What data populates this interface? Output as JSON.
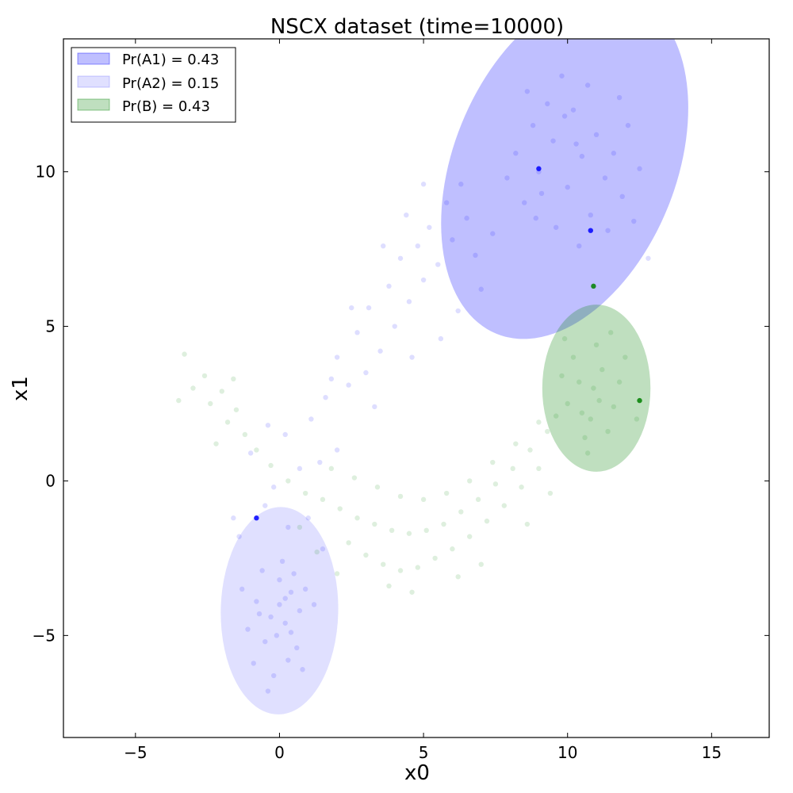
{
  "chart_data": {
    "type": "scatter",
    "title": "NSCX dataset (time=10000)",
    "xlabel": "x0",
    "ylabel": "x1",
    "xlim": [
      -7.5,
      17
    ],
    "ylim": [
      -8.3,
      14.3
    ],
    "xticks": [
      {
        "value": -5,
        "label": "−5"
      },
      {
        "value": 0,
        "label": "0"
      },
      {
        "value": 5,
        "label": "5"
      },
      {
        "value": 10,
        "label": "10"
      },
      {
        "value": 15,
        "label": "15"
      }
    ],
    "yticks": [
      {
        "value": -5,
        "label": "−5"
      },
      {
        "value": 0,
        "label": "0"
      },
      {
        "value": 5,
        "label": "5"
      },
      {
        "value": 10,
        "label": "10"
      }
    ],
    "grid": false,
    "legend_position": "top-left",
    "legend": [
      {
        "label": "Pr(A1) = 0.43",
        "color": "#0000ff",
        "opacity": 0.25
      },
      {
        "label": "Pr(A2) = 0.15",
        "color": "#0000ff",
        "opacity": 0.12
      },
      {
        "label": "Pr(B) = 0.43",
        "color": "#008000",
        "opacity": 0.25
      }
    ],
    "ellipses": [
      {
        "name": "A1",
        "center": [
          9.9,
          10.2
        ],
        "semi_axes": [
          6.3,
          3.6
        ],
        "angle_deg": 68,
        "color": "#0000ff",
        "opacity": 0.25
      },
      {
        "name": "A2",
        "center": [
          0.0,
          -4.2
        ],
        "semi_axes": [
          3.6,
          1.9
        ],
        "angle_deg": 89,
        "color": "#0000ff",
        "opacity": 0.12
      },
      {
        "name": "B",
        "center": [
          11.0,
          3.0
        ],
        "semi_axes": [
          2.9,
          1.75
        ],
        "angle_deg": 90,
        "color": "#008000",
        "opacity": 0.25
      }
    ],
    "series": [
      {
        "color": "#0000ff",
        "opacity": 0.13,
        "points": [
          [
            -0.3,
            -4.4
          ],
          [
            0.2,
            -3.8
          ],
          [
            -0.5,
            -5.2
          ],
          [
            0.4,
            -4.9
          ],
          [
            0.0,
            -3.2
          ],
          [
            -0.8,
            -3.9
          ],
          [
            0.7,
            -4.2
          ],
          [
            0.3,
            -5.8
          ],
          [
            -0.2,
            -6.3
          ],
          [
            0.9,
            -3.5
          ],
          [
            -1.1,
            -4.8
          ],
          [
            0.1,
            -2.6
          ],
          [
            0.6,
            -5.4
          ],
          [
            -0.6,
            -2.9
          ],
          [
            1.2,
            -4.0
          ],
          [
            -0.9,
            -5.9
          ],
          [
            0.5,
            -3.0
          ],
          [
            -0.4,
            -6.8
          ],
          [
            0.8,
            -6.1
          ],
          [
            -1.3,
            -3.5
          ],
          [
            0.0,
            -4.0
          ],
          [
            0.2,
            -4.6
          ],
          [
            -0.1,
            -5.0
          ],
          [
            0.4,
            -3.6
          ],
          [
            -0.7,
            -4.3
          ],
          [
            1.5,
            -2.2
          ],
          [
            -1.4,
            -1.8
          ],
          [
            0.3,
            -1.5
          ],
          [
            -0.5,
            -0.8
          ],
          [
            1.0,
            -1.2
          ],
          [
            -0.2,
            -0.2
          ],
          [
            0.7,
            0.4
          ],
          [
            -1.0,
            0.9
          ],
          [
            1.4,
            0.6
          ],
          [
            -1.6,
            -1.2
          ],
          [
            0.2,
            1.5
          ],
          [
            1.1,
            2.0
          ],
          [
            -0.4,
            1.8
          ],
          [
            2.0,
            1.0
          ],
          [
            1.6,
            2.7
          ],
          [
            2.4,
            3.1
          ],
          [
            2.0,
            4.0
          ],
          [
            3.0,
            3.5
          ],
          [
            2.7,
            4.8
          ],
          [
            3.5,
            4.2
          ],
          [
            3.1,
            5.6
          ],
          [
            4.0,
            5.0
          ],
          [
            3.8,
            6.3
          ],
          [
            4.5,
            5.8
          ],
          [
            4.2,
            7.2
          ],
          [
            5.0,
            6.5
          ],
          [
            4.8,
            7.6
          ],
          [
            5.5,
            7.0
          ],
          [
            5.2,
            8.2
          ],
          [
            6.0,
            7.8
          ],
          [
            5.8,
            9.0
          ],
          [
            6.5,
            8.5
          ],
          [
            6.3,
            9.6
          ],
          [
            3.3,
            2.4
          ],
          [
            4.6,
            4.0
          ],
          [
            5.6,
            4.6
          ],
          [
            6.2,
            5.5
          ],
          [
            7.0,
            6.2
          ],
          [
            6.8,
            7.3
          ],
          [
            7.4,
            8.0
          ],
          [
            2.5,
            5.6
          ],
          [
            1.8,
            3.3
          ],
          [
            3.6,
            7.6
          ],
          [
            4.4,
            8.6
          ],
          [
            5.0,
            9.6
          ],
          [
            8.5,
            9.0
          ],
          [
            9.0,
            10.0
          ],
          [
            9.5,
            11.0
          ],
          [
            10.0,
            9.5
          ],
          [
            10.5,
            10.5
          ],
          [
            8.8,
            11.5
          ],
          [
            9.3,
            12.2
          ],
          [
            10.2,
            12.0
          ],
          [
            11.0,
            11.2
          ],
          [
            11.3,
            9.8
          ],
          [
            10.8,
            8.6
          ],
          [
            9.6,
            8.2
          ],
          [
            11.6,
            10.6
          ],
          [
            8.2,
            10.6
          ],
          [
            9.9,
            11.8
          ],
          [
            10.7,
            12.8
          ],
          [
            11.9,
            9.2
          ],
          [
            12.3,
            8.4
          ],
          [
            12.8,
            7.2
          ],
          [
            9.1,
            9.3
          ],
          [
            10.4,
            7.6
          ],
          [
            11.4,
            8.1
          ],
          [
            8.6,
            12.6
          ],
          [
            9.8,
            13.1
          ],
          [
            12.1,
            11.5
          ],
          [
            7.9,
            9.8
          ],
          [
            8.9,
            8.5
          ],
          [
            12.5,
            10.1
          ],
          [
            11.8,
            12.4
          ],
          [
            10.3,
            10.9
          ]
        ]
      },
      {
        "color": "#008000",
        "opacity": 0.13,
        "points": [
          [
            -3.0,
            3.0
          ],
          [
            -2.4,
            2.5
          ],
          [
            -1.8,
            1.9
          ],
          [
            -1.2,
            1.5
          ],
          [
            -2.6,
            3.4
          ],
          [
            -3.5,
            2.6
          ],
          [
            -2.0,
            2.9
          ],
          [
            -1.5,
            2.3
          ],
          [
            -0.8,
            1.0
          ],
          [
            -0.3,
            0.5
          ],
          [
            0.3,
            0.0
          ],
          [
            0.9,
            -0.4
          ],
          [
            1.5,
            -0.6
          ],
          [
            2.1,
            -0.9
          ],
          [
            2.7,
            -1.2
          ],
          [
            3.3,
            -1.4
          ],
          [
            3.9,
            -1.6
          ],
          [
            4.5,
            -1.7
          ],
          [
            5.1,
            -1.6
          ],
          [
            5.7,
            -1.4
          ],
          [
            6.3,
            -1.0
          ],
          [
            6.9,
            -0.6
          ],
          [
            7.5,
            -0.1
          ],
          [
            8.1,
            0.4
          ],
          [
            8.7,
            1.0
          ],
          [
            9.3,
            1.6
          ],
          [
            2.4,
            -2.0
          ],
          [
            3.0,
            -2.4
          ],
          [
            3.6,
            -2.7
          ],
          [
            4.2,
            -2.9
          ],
          [
            4.8,
            -2.8
          ],
          [
            5.4,
            -2.5
          ],
          [
            6.0,
            -2.2
          ],
          [
            6.6,
            -1.8
          ],
          [
            7.2,
            -1.3
          ],
          [
            7.8,
            -0.8
          ],
          [
            8.4,
            -0.2
          ],
          [
            9.0,
            0.4
          ],
          [
            1.8,
            0.4
          ],
          [
            2.6,
            0.1
          ],
          [
            3.4,
            -0.2
          ],
          [
            4.2,
            -0.5
          ],
          [
            5.0,
            -0.6
          ],
          [
            5.8,
            -0.4
          ],
          [
            6.6,
            0.0
          ],
          [
            7.4,
            0.6
          ],
          [
            8.2,
            1.2
          ],
          [
            9.0,
            1.9
          ],
          [
            3.8,
            -3.4
          ],
          [
            4.6,
            -3.6
          ],
          [
            10.0,
            2.5
          ],
          [
            10.4,
            3.2
          ],
          [
            10.8,
            2.0
          ],
          [
            11.2,
            3.6
          ],
          [
            10.6,
            1.4
          ],
          [
            11.6,
            2.4
          ],
          [
            10.2,
            4.0
          ],
          [
            11.0,
            4.4
          ],
          [
            9.8,
            3.4
          ],
          [
            11.4,
            1.6
          ],
          [
            10.9,
            3.0
          ],
          [
            11.8,
            3.2
          ],
          [
            10.5,
            2.2
          ],
          [
            11.1,
            2.6
          ],
          [
            9.6,
            2.1
          ],
          [
            12.0,
            4.0
          ],
          [
            10.7,
            0.9
          ],
          [
            11.5,
            4.8
          ],
          [
            12.4,
            2.0
          ],
          [
            9.9,
            4.6
          ],
          [
            -3.3,
            4.1
          ],
          [
            -1.6,
            3.3
          ],
          [
            0.7,
            -1.5
          ],
          [
            1.3,
            -2.3
          ],
          [
            6.2,
            -3.1
          ],
          [
            7.0,
            -2.7
          ],
          [
            8.6,
            -1.4
          ],
          [
            9.4,
            -0.4
          ],
          [
            -2.2,
            1.2
          ],
          [
            2.0,
            -3.0
          ]
        ]
      }
    ],
    "highlight_points": [
      {
        "x": 9.0,
        "y": 10.1,
        "color": "#0000ff"
      },
      {
        "x": 10.8,
        "y": 8.1,
        "color": "#0000ff"
      },
      {
        "x": -0.8,
        "y": -1.2,
        "color": "#0000ff"
      },
      {
        "x": 12.5,
        "y": 2.6,
        "color": "#008000"
      },
      {
        "x": 10.9,
        "y": 6.3,
        "color": "#008000"
      }
    ]
  }
}
